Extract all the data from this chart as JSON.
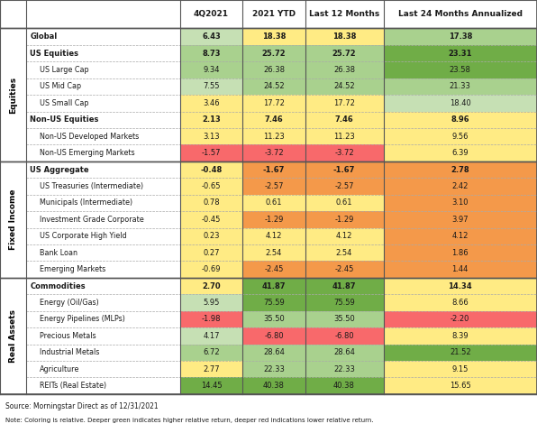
{
  "columns": [
    "4Q2021",
    "2021 YTD",
    "Last 12 Months",
    "Last 24 Months Annualized"
  ],
  "source_note": "Source: Morningstar Direct as of 12/31/2021",
  "note2": "Note: Coloring is relative. Deeper green indicates higher relative return, deeper red indications lower relative return.",
  "row_groups": [
    {
      "group_label": "Equities",
      "rows": [
        {
          "label": "Global",
          "bold": true,
          "indent": 0,
          "values": [
            6.43,
            18.38,
            18.38,
            17.38
          ]
        },
        {
          "label": "US Equities",
          "bold": true,
          "indent": 0,
          "values": [
            8.73,
            25.72,
            25.72,
            23.31
          ]
        },
        {
          "label": "US Large Cap",
          "bold": false,
          "indent": 1,
          "values": [
            9.34,
            26.38,
            26.38,
            23.58
          ]
        },
        {
          "label": "US Mid Cap",
          "bold": false,
          "indent": 1,
          "values": [
            7.55,
            24.52,
            24.52,
            21.33
          ]
        },
        {
          "label": "US Small Cap",
          "bold": false,
          "indent": 1,
          "values": [
            3.46,
            17.72,
            17.72,
            18.4
          ]
        },
        {
          "label": "Non-US Equities",
          "bold": true,
          "indent": 0,
          "values": [
            2.13,
            7.46,
            7.46,
            8.96
          ]
        },
        {
          "label": "Non-US Developed Markets",
          "bold": false,
          "indent": 1,
          "values": [
            3.13,
            11.23,
            11.23,
            9.56
          ]
        },
        {
          "label": "Non-US Emerging Markets",
          "bold": false,
          "indent": 1,
          "values": [
            -1.57,
            -3.72,
            -3.72,
            6.39
          ]
        }
      ]
    },
    {
      "group_label": "Fixed Income",
      "rows": [
        {
          "label": "US Aggregate",
          "bold": true,
          "indent": 0,
          "values": [
            -0.48,
            -1.67,
            -1.67,
            2.78
          ]
        },
        {
          "label": "US Treasuries (Intermediate)",
          "bold": false,
          "indent": 1,
          "values": [
            -0.65,
            -2.57,
            -2.57,
            2.42
          ]
        },
        {
          "label": "Municipals (Intermediate)",
          "bold": false,
          "indent": 1,
          "values": [
            0.78,
            0.61,
            0.61,
            3.1
          ]
        },
        {
          "label": "Investment Grade Corporate",
          "bold": false,
          "indent": 1,
          "values": [
            -0.45,
            -1.29,
            -1.29,
            3.97
          ]
        },
        {
          "label": "US Corporate High Yield",
          "bold": false,
          "indent": 1,
          "values": [
            0.23,
            4.12,
            4.12,
            4.12
          ]
        },
        {
          "label": "Bank Loan",
          "bold": false,
          "indent": 1,
          "values": [
            0.27,
            2.54,
            2.54,
            1.86
          ]
        },
        {
          "label": "Emerging Markets",
          "bold": false,
          "indent": 1,
          "values": [
            -0.69,
            -2.45,
            -2.45,
            1.44
          ]
        }
      ]
    },
    {
      "group_label": "Real Assets",
      "rows": [
        {
          "label": "Commodities",
          "bold": true,
          "indent": 0,
          "values": [
            2.7,
            41.87,
            41.87,
            14.34
          ]
        },
        {
          "label": "Energy (Oil/Gas)",
          "bold": false,
          "indent": 1,
          "values": [
            5.95,
            75.59,
            75.59,
            8.66
          ]
        },
        {
          "label": "Energy Pipelines (MLPs)",
          "bold": false,
          "indent": 1,
          "values": [
            -1.98,
            35.5,
            35.5,
            -2.2
          ]
        },
        {
          "label": "Precious Metals",
          "bold": false,
          "indent": 1,
          "values": [
            4.17,
            -6.8,
            -6.8,
            8.39
          ]
        },
        {
          "label": "Industrial Metals",
          "bold": false,
          "indent": 1,
          "values": [
            6.72,
            28.64,
            28.64,
            21.52
          ]
        },
        {
          "label": "Agriculture",
          "bold": false,
          "indent": 1,
          "values": [
            2.77,
            22.33,
            22.33,
            9.15
          ]
        },
        {
          "label": "REITs (Real Estate)",
          "bold": false,
          "indent": 1,
          "values": [
            14.45,
            40.38,
            40.38,
            15.65
          ]
        }
      ]
    }
  ],
  "cell_colors": [
    [
      "#c6e0b4",
      "#ffeb84",
      "#ffeb84",
      "#a9d18e"
    ],
    [
      "#a9d18e",
      "#a9d18e",
      "#a9d18e",
      "#70ad47"
    ],
    [
      "#a9d18e",
      "#a9d18e",
      "#a9d18e",
      "#70ad47"
    ],
    [
      "#c6e0b4",
      "#a9d18e",
      "#a9d18e",
      "#a9d18e"
    ],
    [
      "#ffeb84",
      "#ffeb84",
      "#ffeb84",
      "#c6e0b4"
    ],
    [
      "#ffeb84",
      "#ffeb84",
      "#ffeb84",
      "#ffeb84"
    ],
    [
      "#ffeb84",
      "#ffeb84",
      "#ffeb84",
      "#ffeb84"
    ],
    [
      "#f8696b",
      "#f8696b",
      "#f8696b",
      "#ffeb84"
    ],
    [
      "#ffeb84",
      "#f4994a",
      "#f4994a",
      "#f4994a"
    ],
    [
      "#ffeb84",
      "#f4994a",
      "#f4994a",
      "#f4994a"
    ],
    [
      "#ffeb84",
      "#ffeb84",
      "#ffeb84",
      "#f4994a"
    ],
    [
      "#ffeb84",
      "#f4994a",
      "#f4994a",
      "#f4994a"
    ],
    [
      "#ffeb84",
      "#ffeb84",
      "#ffeb84",
      "#f4994a"
    ],
    [
      "#ffeb84",
      "#ffeb84",
      "#ffeb84",
      "#f4994a"
    ],
    [
      "#ffeb84",
      "#f4994a",
      "#f4994a",
      "#f4994a"
    ],
    [
      "#ffeb84",
      "#70ad47",
      "#70ad47",
      "#ffeb84"
    ],
    [
      "#c6e0b4",
      "#70ad47",
      "#70ad47",
      "#ffeb84"
    ],
    [
      "#f8696b",
      "#a9d18e",
      "#a9d18e",
      "#f8696b"
    ],
    [
      "#c6e0b4",
      "#f8696b",
      "#f8696b",
      "#ffeb84"
    ],
    [
      "#a9d18e",
      "#a9d18e",
      "#a9d18e",
      "#70ad47"
    ],
    [
      "#ffeb84",
      "#a9d18e",
      "#a9d18e",
      "#ffeb84"
    ],
    [
      "#70ad47",
      "#70ad47",
      "#70ad47",
      "#ffeb84"
    ]
  ]
}
